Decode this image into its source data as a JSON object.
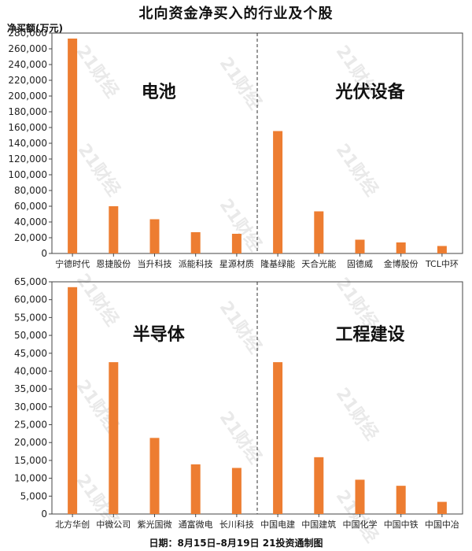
{
  "title": "北向资金净买入的行业及个股",
  "unit_label": "净买额(万元)",
  "footer": "日期：8月15日–8月19日 21投资通制图",
  "watermark": "21财经",
  "colors": {
    "bar": "#ED7D31",
    "axis": "#444444",
    "divider": "#333333"
  },
  "chart_data": [
    {
      "type": "bar",
      "ylim": [
        0,
        280000
      ],
      "yticks": [
        0,
        20000,
        40000,
        60000,
        80000,
        100000,
        120000,
        140000,
        160000,
        180000,
        200000,
        220000,
        240000,
        260000,
        280000
      ],
      "ytick_labels": [
        "0",
        "20,000",
        "40,000",
        "60,000",
        "80,000",
        "100,000",
        "120,000",
        "140,000",
        "160,000",
        "180,000",
        "200,000",
        "220,000",
        "240,000",
        "260,000",
        "280,000"
      ],
      "groups": [
        {
          "label": "电池",
          "categories": [
            "宁德时代",
            "恩捷股份",
            "当升科技",
            "派能科技",
            "星源材质"
          ],
          "values": [
            273000,
            60000,
            43500,
            27000,
            25000
          ]
        },
        {
          "label": "光伏设备",
          "categories": [
            "隆基绿能",
            "天合光能",
            "固德威",
            "金博股份",
            "TCL中环"
          ],
          "values": [
            155500,
            53500,
            17500,
            14000,
            9500
          ]
        }
      ]
    },
    {
      "type": "bar",
      "ylim": [
        0,
        65000
      ],
      "yticks": [
        0,
        5000,
        10000,
        15000,
        20000,
        25000,
        30000,
        35000,
        40000,
        45000,
        50000,
        55000,
        60000,
        65000
      ],
      "ytick_labels": [
        "0",
        "5,000",
        "10,000",
        "15,000",
        "20,000",
        "25,000",
        "30,000",
        "35,000",
        "40,000",
        "45,000",
        "50,000",
        "55,000",
        "60,000",
        "65,000"
      ],
      "groups": [
        {
          "label": "半导体",
          "categories": [
            "北方华创",
            "中微公司",
            "紫光国微",
            "通富微电",
            "长川科技"
          ],
          "values": [
            63500,
            42500,
            21300,
            13900,
            12900
          ]
        },
        {
          "label": "工程建设",
          "categories": [
            "中国电建",
            "中国建筑",
            "中国化学",
            "中国中铁",
            "中国中冶"
          ],
          "values": [
            42500,
            15900,
            9600,
            7900,
            3400
          ]
        }
      ]
    }
  ]
}
